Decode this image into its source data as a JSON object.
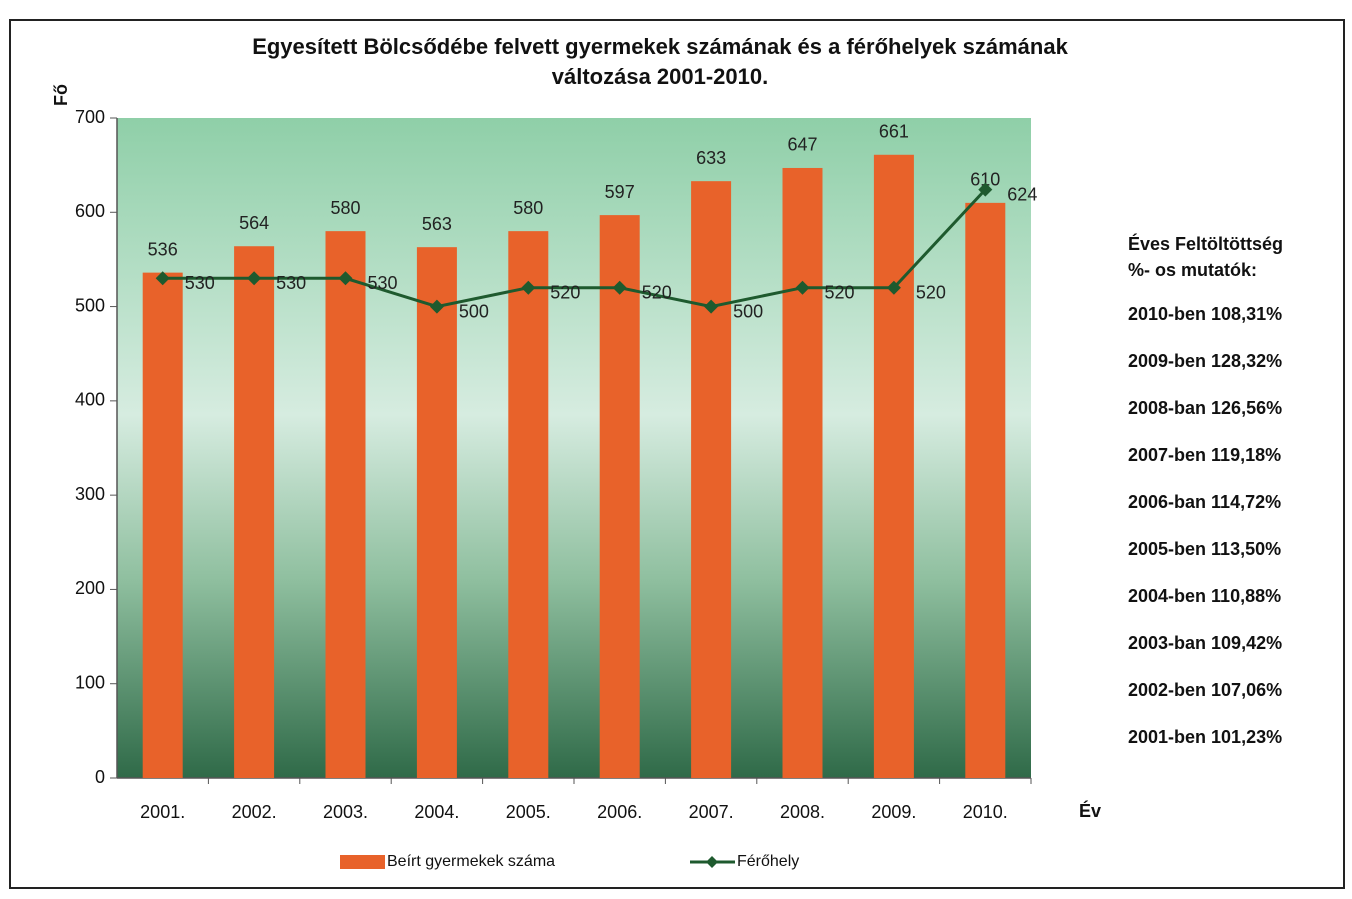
{
  "chart_data": {
    "type": "bar_line",
    "title": [
      "Egyesített Bölcsődébe felvett gyermekek számának és a férőhelyek számának",
      "változása 2001-2010."
    ],
    "y_label": "Fő",
    "x_label": "Év",
    "categories": [
      "2001.",
      "2002.",
      "2003.",
      "2004.",
      "2005.",
      "2006.",
      "2007.",
      "2008.",
      "2009.",
      "2010."
    ],
    "series": [
      {
        "name": "Beírt gyermekek száma",
        "type": "bar",
        "color": "#e8622a",
        "values": [
          536,
          564,
          580,
          563,
          580,
          597,
          633,
          647,
          661,
          610
        ]
      },
      {
        "name": "Férőhely",
        "type": "line",
        "color": "#1e5a2e",
        "values": [
          530,
          530,
          530,
          500,
          520,
          520,
          500,
          520,
          520,
          624
        ]
      }
    ],
    "ylim": [
      0,
      700
    ],
    "yticks": [
      0,
      100,
      200,
      300,
      400,
      500,
      600,
      700
    ],
    "legend": "bottom",
    "side_note": {
      "heading": [
        "Éves Feltöltöttség",
        "%- os mutatók:"
      ],
      "items": [
        "2010-ben 108,31%",
        "2009-ben 128,32%",
        "2008-ban 126,56%",
        "2007-ben 119,18%",
        "2006-ban 114,72%",
        "2005-ben 113,50%",
        "2004-ben 110,88%",
        "2003-ban 109,42%",
        "2002-ben 107,06%",
        "2001-ben 101,23%"
      ]
    }
  }
}
